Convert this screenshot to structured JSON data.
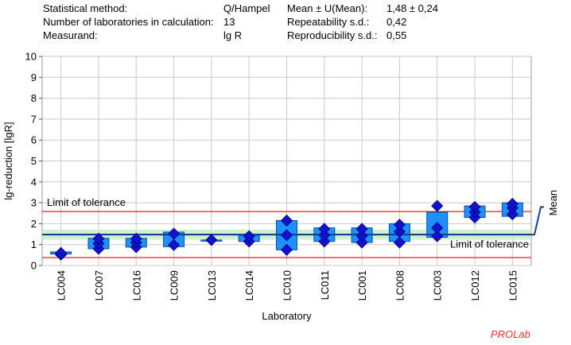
{
  "stats": {
    "labels": [
      "Statistical method:",
      "Number of laboratories in calculation:",
      "Measurand:"
    ],
    "values": [
      "Q/Hampel",
      "13",
      "lg R"
    ],
    "labels2": [
      "Mean ± U(Mean):",
      "Repeatability s.d.:",
      "Reproducibility s.d.:"
    ],
    "values2": [
      "1,48 ± 0,24",
      "0,42",
      "0,55"
    ]
  },
  "brand": "PROLab",
  "colors": {
    "box": "#1e90ff",
    "box_border": "#0b4f9c",
    "marker": "#1212c8",
    "mean_line": "#1b3f8c",
    "tolerance": "#e02020",
    "mean_band": "#c6f0c6"
  },
  "chart_data": {
    "type": "box",
    "xlabel": "Laboratory",
    "ylabel": "lg-reduction [lgR]",
    "ylim": [
      0,
      10
    ],
    "yticks": [
      0,
      1,
      2,
      3,
      4,
      5,
      6,
      7,
      8,
      9,
      10
    ],
    "mean": 1.48,
    "mean_band": [
      1.24,
      1.72
    ],
    "tolerance": [
      0.38,
      2.58
    ],
    "mean_label": "Mean",
    "tolerance_label": "Limit of tolerance",
    "labs": [
      {
        "name": "LC004",
        "values": [
          0.52,
          0.6
        ],
        "box": [
          0.55,
          0.65
        ]
      },
      {
        "name": "LC007",
        "values": [
          0.8,
          1.05,
          1.28
        ],
        "box": [
          0.8,
          1.3
        ]
      },
      {
        "name": "LC016",
        "values": [
          0.88,
          1.1,
          1.28
        ],
        "box": [
          0.88,
          1.3
        ]
      },
      {
        "name": "LC009",
        "values": [
          0.98,
          1.52
        ],
        "box": [
          0.9,
          1.6
        ]
      },
      {
        "name": "LC013",
        "values": [
          1.22
        ],
        "box": [
          1.22,
          1.22
        ]
      },
      {
        "name": "LC014",
        "values": [
          1.15,
          1.4
        ],
        "box": [
          1.15,
          1.45
        ]
      },
      {
        "name": "LC010",
        "values": [
          0.75,
          1.45,
          2.15
        ],
        "box": [
          0.75,
          2.15
        ]
      },
      {
        "name": "LC011",
        "values": [
          1.15,
          1.45,
          1.75
        ],
        "box": [
          1.15,
          1.8
        ]
      },
      {
        "name": "LC001",
        "values": [
          1.1,
          1.42,
          1.75
        ],
        "box": [
          1.1,
          1.8
        ]
      },
      {
        "name": "LC008",
        "values": [
          1.1,
          1.62,
          1.95
        ],
        "box": [
          1.15,
          2.0
        ]
      },
      {
        "name": "LC003",
        "values": [
          1.4,
          1.8,
          2.85
        ],
        "box": [
          1.35,
          2.55
        ]
      },
      {
        "name": "LC012",
        "values": [
          2.3,
          2.55,
          2.8
        ],
        "box": [
          2.3,
          2.85
        ]
      },
      {
        "name": "LC015",
        "values": [
          2.45,
          2.75,
          2.95
        ],
        "box": [
          2.35,
          3.0
        ]
      }
    ]
  }
}
